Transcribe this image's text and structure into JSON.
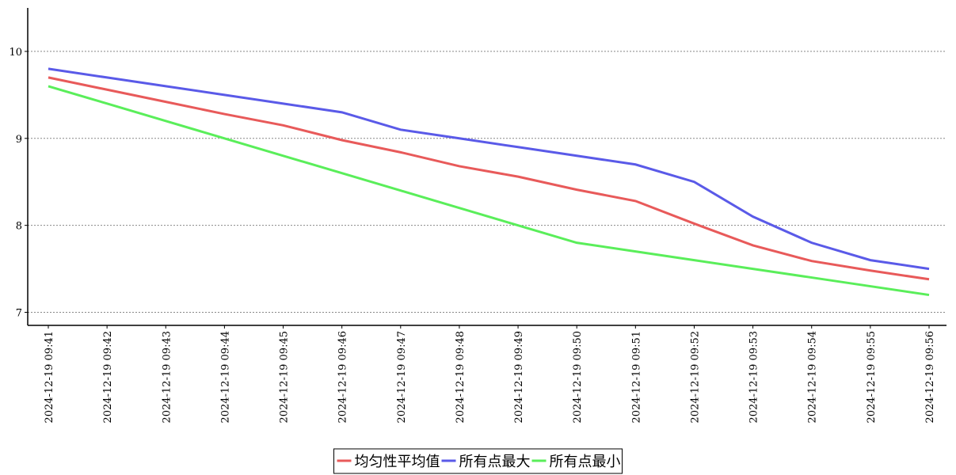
{
  "chart_data": {
    "type": "line",
    "categories": [
      "2024-12-19 09:41",
      "2024-12-19 09:42",
      "2024-12-19 09:43",
      "2024-12-19 09:44",
      "2024-12-19 09:45",
      "2024-12-19 09:46",
      "2024-12-19 09:47",
      "2024-12-19 09:48",
      "2024-12-19 09:49",
      "2024-12-19 09:50",
      "2024-12-19 09:51",
      "2024-12-19 09:52",
      "2024-12-19 09:53",
      "2024-12-19 09:54",
      "2024-12-19 09:55",
      "2024-12-19 09:56"
    ],
    "series": [
      {
        "name": "均匀性平均值",
        "color": "#e85a5a",
        "values": [
          9.7,
          9.56,
          9.42,
          9.28,
          9.15,
          8.98,
          8.84,
          8.68,
          8.56,
          8.41,
          8.28,
          8.02,
          7.77,
          7.59,
          7.48,
          7.38
        ]
      },
      {
        "name": "所有点最大",
        "color": "#5a5ae8",
        "values": [
          9.8,
          9.7,
          9.6,
          9.5,
          9.4,
          9.3,
          9.1,
          9.0,
          8.9,
          8.8,
          8.7,
          8.5,
          8.1,
          7.8,
          7.6,
          7.5
        ]
      },
      {
        "name": "所有点最小",
        "color": "#5aee5a",
        "values": [
          9.6,
          9.4,
          9.2,
          9.0,
          8.8,
          8.6,
          8.4,
          8.2,
          8.0,
          7.8,
          7.7,
          7.6,
          7.5,
          7.4,
          7.3,
          7.2
        ]
      }
    ],
    "ylim": [
      6.85,
      10.5
    ],
    "yticks": [
      7,
      8,
      9,
      10
    ],
    "grid": true,
    "legend": "bottom"
  }
}
